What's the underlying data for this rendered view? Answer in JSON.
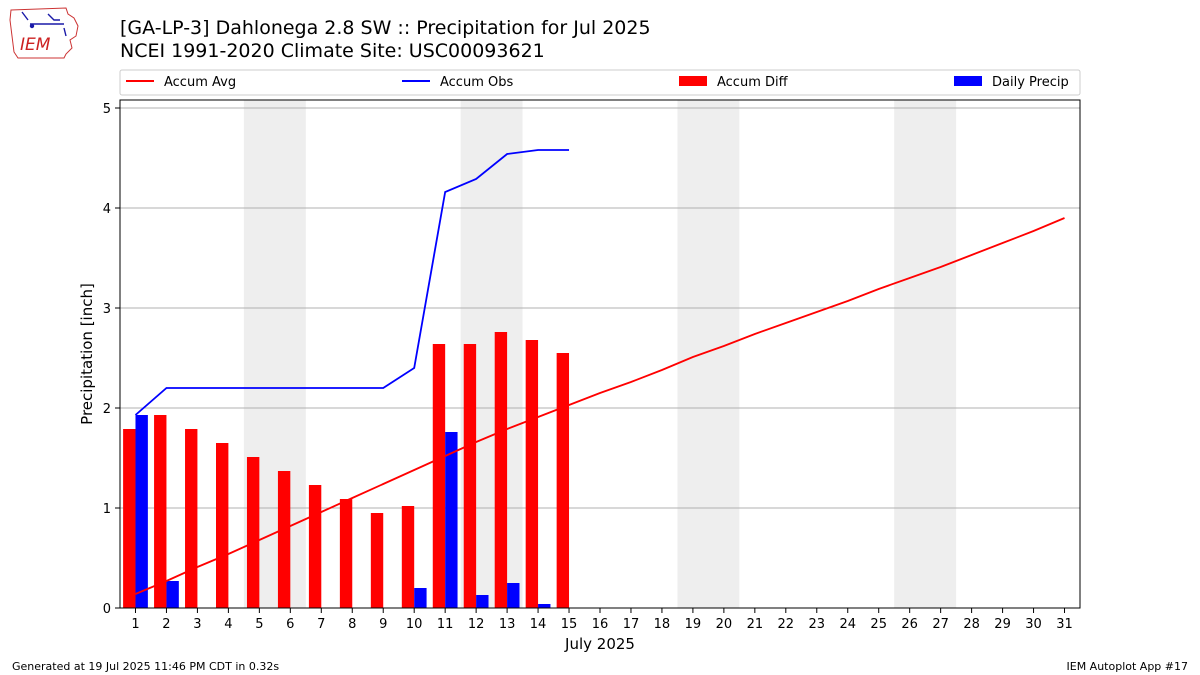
{
  "title_lines": [
    "[GA-LP-3] Dahlonega 2.8 SW :: Precipitation for Jul 2025",
    "NCEI 1991-2020 Climate Site: USC00093621"
  ],
  "logo_text": "IEM",
  "footer": {
    "left": "Generated at 19 Jul 2025 11:46 PM CDT in 0.32s",
    "right": "IEM Autoplot App #17"
  },
  "colors": {
    "accum_avg": "#ff0000",
    "accum_obs": "#0000ff",
    "accum_diff": "#ff0000",
    "daily_precip": "#0000ff",
    "weekend_shade": "#eeeeee",
    "grid": "#b0b0b0"
  },
  "chart_data": {
    "type": "bar",
    "title": "[GA-LP-3] Dahlonega 2.8 SW :: Precipitation for Jul 2025",
    "xlabel": "July 2025",
    "ylabel": "Precipitation [inch]",
    "x": [
      1,
      2,
      3,
      4,
      5,
      6,
      7,
      8,
      9,
      10,
      11,
      12,
      13,
      14,
      15,
      16,
      17,
      18,
      19,
      20,
      21,
      22,
      23,
      24,
      25,
      26,
      27,
      28,
      29,
      30,
      31
    ],
    "xlim": [
      0.5,
      31.5
    ],
    "ylim": [
      0,
      5.08
    ],
    "yticks": [
      0,
      1,
      2,
      3,
      4,
      5
    ],
    "grid": true,
    "legend_position": "top",
    "weekend_shading": [
      [
        5,
        6
      ],
      [
        12,
        13
      ],
      [
        19,
        20
      ],
      [
        26,
        27
      ]
    ],
    "series": [
      {
        "name": "Accum Avg",
        "kind": "line",
        "x": [
          1,
          2,
          3,
          4,
          5,
          6,
          7,
          8,
          9,
          10,
          11,
          12,
          13,
          14,
          15,
          16,
          17,
          18,
          19,
          20,
          21,
          22,
          23,
          24,
          25,
          26,
          27,
          28,
          29,
          30,
          31
        ],
        "values": [
          0.14,
          0.27,
          0.41,
          0.54,
          0.68,
          0.82,
          0.96,
          1.1,
          1.24,
          1.38,
          1.52,
          1.66,
          1.79,
          1.91,
          2.03,
          2.15,
          2.26,
          2.38,
          2.51,
          2.62,
          2.74,
          2.85,
          2.96,
          3.07,
          3.19,
          3.3,
          3.41,
          3.53,
          3.65,
          3.77,
          3.9
        ]
      },
      {
        "name": "Accum Obs",
        "kind": "line",
        "x": [
          1,
          2,
          3,
          4,
          5,
          6,
          7,
          8,
          9,
          10,
          11,
          12,
          13,
          14,
          15
        ],
        "values": [
          1.93,
          2.2,
          2.2,
          2.2,
          2.2,
          2.2,
          2.2,
          2.2,
          2.2,
          2.4,
          4.16,
          4.29,
          4.54,
          4.58,
          4.58
        ]
      },
      {
        "name": "Accum Diff",
        "kind": "bar",
        "x": [
          1,
          2,
          3,
          4,
          5,
          6,
          7,
          8,
          9,
          10,
          11,
          12,
          13,
          14,
          15
        ],
        "values": [
          1.79,
          1.93,
          1.79,
          1.65,
          1.51,
          1.37,
          1.23,
          1.09,
          0.95,
          1.02,
          2.64,
          2.64,
          2.76,
          2.68,
          2.55
        ]
      },
      {
        "name": "Daily Precip",
        "kind": "bar",
        "x": [
          1,
          2,
          3,
          4,
          5,
          6,
          7,
          8,
          9,
          10,
          11,
          12,
          13,
          14,
          15
        ],
        "values": [
          1.93,
          0.27,
          0,
          0,
          0,
          0,
          0,
          0,
          0,
          0.2,
          1.76,
          0.13,
          0.25,
          0.04,
          0
        ]
      }
    ]
  }
}
